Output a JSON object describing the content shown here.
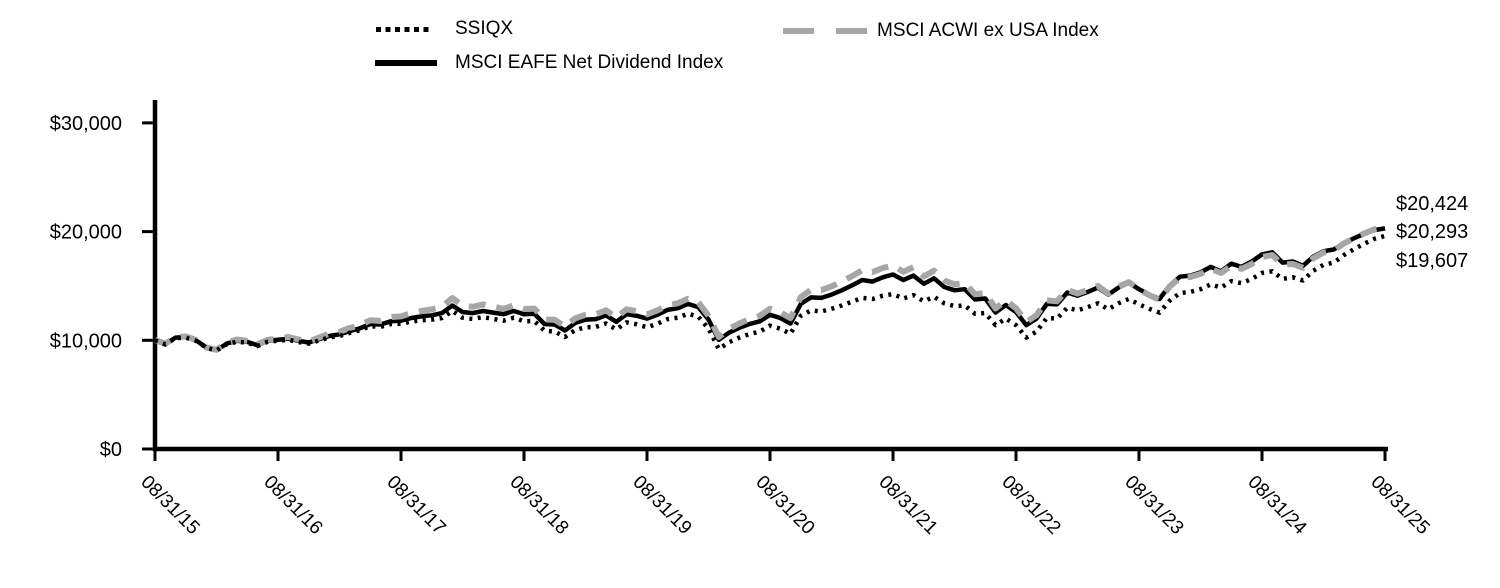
{
  "legend": {
    "items": [
      {
        "label": "SSIQX",
        "swatch": "dotted",
        "color": "#000000"
      },
      {
        "label": "MSCI ACWI ex USA Index",
        "swatch": "dashed",
        "color": "#a6a6a6"
      },
      {
        "label": "MSCI EAFE Net Dividend Index",
        "swatch": "solid",
        "color": "#000000"
      }
    ]
  },
  "end_labels": [
    {
      "text": "$20,424",
      "series": "MSCI ACWI ex USA Index"
    },
    {
      "text": "$20,293",
      "series": "MSCI EAFE Net Dividend Index"
    },
    {
      "text": "$19,607",
      "series": "SSIQX"
    }
  ],
  "chart_data": {
    "type": "line",
    "title": "",
    "xlabel": "",
    "ylabel": "",
    "x_unit": "monthly points from 08/31/15 to 08/31/25",
    "x_tick_labels": [
      "08/31/15",
      "08/31/16",
      "08/31/17",
      "08/31/18",
      "08/31/19",
      "08/31/20",
      "08/31/21",
      "08/31/22",
      "08/31/23",
      "08/31/24",
      "08/31/25"
    ],
    "y_tick_labels": [
      "$0",
      "$10,000",
      "$20,000",
      "$30,000"
    ],
    "y_tick_values": [
      0,
      10000,
      20000,
      30000
    ],
    "ylim": [
      0,
      32100
    ],
    "grid": false,
    "legend_position": "top",
    "series": [
      {
        "name": "SSIQX",
        "style": "dotted",
        "color": "#000000",
        "final_value": 19607,
        "values": [
          10000,
          9620,
          10200,
          10240,
          9950,
          9320,
          9060,
          9640,
          9870,
          9770,
          9480,
          9870,
          9960,
          10050,
          9840,
          9700,
          9980,
          10270,
          10400,
          10690,
          10920,
          11300,
          11230,
          11500,
          11520,
          11730,
          11840,
          11900,
          12050,
          12700,
          12080,
          11960,
          12140,
          11970,
          11800,
          12080,
          11750,
          11770,
          10880,
          10800,
          10300,
          10950,
          11200,
          11230,
          11550,
          11000,
          11650,
          11470,
          11200,
          11530,
          11950,
          12080,
          12450,
          12170,
          11080,
          9200,
          9820,
          10250,
          10570,
          10800,
          11350,
          11070,
          10600,
          12250,
          12750,
          12650,
          12900,
          13200,
          13550,
          13900,
          13800,
          14100,
          14250,
          13850,
          14150,
          13600,
          14000,
          13400,
          13150,
          13200,
          12450,
          12500,
          11400,
          12000,
          11400,
          10250,
          10800,
          12050,
          12000,
          13000,
          12750,
          13050,
          13400,
          12850,
          13400,
          13800,
          13300,
          12900,
          12550,
          13650,
          14350,
          14450,
          14700,
          15150,
          14850,
          15450,
          15250,
          15650,
          16200,
          16350,
          15650,
          15800,
          15500,
          16400,
          16950,
          17150,
          17850,
          18400,
          18900,
          19350,
          19607
        ]
      },
      {
        "name": "MSCI EAFE Net Dividend Index",
        "style": "solid",
        "color": "#000000",
        "final_value": 20293,
        "values": [
          10000,
          9650,
          10250,
          10300,
          10000,
          9350,
          9100,
          9700,
          9950,
          9850,
          9550,
          9950,
          10050,
          10150,
          9950,
          9800,
          10100,
          10400,
          10550,
          10850,
          11100,
          11500,
          11450,
          11750,
          11800,
          12050,
          12200,
          12300,
          12500,
          13200,
          12600,
          12500,
          12700,
          12550,
          12400,
          12700,
          12400,
          12450,
          11500,
          11450,
          10900,
          11600,
          11900,
          11950,
          12300,
          11700,
          12400,
          12250,
          12000,
          12350,
          12800,
          12950,
          13350,
          13050,
          11900,
          10050,
          10700,
          11150,
          11500,
          11750,
          12350,
          12050,
          11550,
          13350,
          13950,
          13900,
          14200,
          14600,
          15050,
          15550,
          15400,
          15800,
          16050,
          15550,
          15950,
          15200,
          15700,
          14900,
          14600,
          14700,
          13750,
          13850,
          12550,
          13250,
          12600,
          11400,
          12000,
          13350,
          13300,
          14400,
          14100,
          14450,
          14850,
          14200,
          14850,
          15300,
          14700,
          14200,
          13800,
          15050,
          15850,
          15950,
          16250,
          16750,
          16350,
          17050,
          16750,
          17250,
          17900,
          18100,
          17150,
          17250,
          16850,
          17700,
          18200,
          18350,
          18950,
          19400,
          19800,
          20150,
          20293
        ]
      },
      {
        "name": "MSCI ACWI ex USA Index",
        "style": "dashed",
        "color": "#a6a6a6",
        "final_value": 20424,
        "values": [
          10030,
          9690,
          10310,
          10350,
          10030,
          9350,
          9130,
          9780,
          10070,
          9950,
          9630,
          10050,
          10170,
          10300,
          10080,
          9900,
          10250,
          10600,
          10780,
          11130,
          11400,
          11850,
          11780,
          12130,
          12200,
          12500,
          12700,
          12850,
          13100,
          13880,
          13200,
          13080,
          13300,
          13110,
          12900,
          13220,
          12880,
          12920,
          11920,
          11880,
          11280,
          12020,
          12350,
          12390,
          12760,
          12100,
          12850,
          12680,
          12380,
          12750,
          13230,
          13400,
          13830,
          13500,
          12250,
          10300,
          11050,
          11550,
          11950,
          12250,
          12910,
          12570,
          12030,
          13970,
          14650,
          14620,
          14960,
          15400,
          15900,
          16450,
          16280,
          16650,
          16880,
          16300,
          16730,
          15880,
          16400,
          15500,
          15150,
          15260,
          14230,
          14350,
          12930,
          13670,
          12950,
          11680,
          12300,
          13670,
          13600,
          14650,
          14300,
          14630,
          15000,
          14300,
          14930,
          15350,
          14700,
          14150,
          13720,
          14950,
          15730,
          15820,
          16100,
          16570,
          16190,
          16850,
          16570,
          17030,
          17670,
          17850,
          16950,
          17030,
          16670,
          17550,
          18080,
          18270,
          18910,
          19400,
          19840,
          20230,
          20424
        ]
      }
    ]
  }
}
